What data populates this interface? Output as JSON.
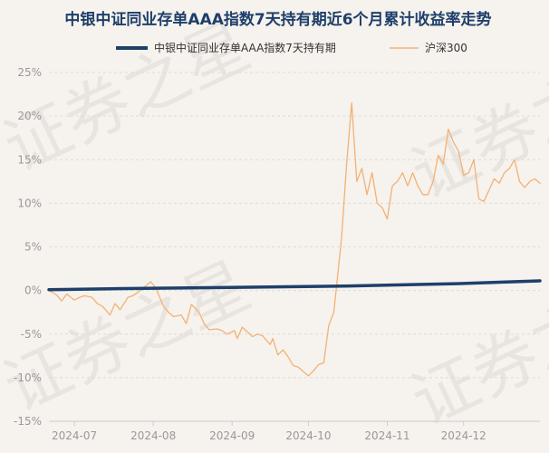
{
  "watermark": "证券之星",
  "chart_data": {
    "type": "line",
    "title": "中银中证同业存单AAA指数7天持有期近6个月累计收益率走势",
    "legend_position": "top",
    "grid": true,
    "y_tick_labels": [
      "25%",
      "20%",
      "15%",
      "10%",
      "5%",
      "0%",
      "-5%",
      "-10%",
      "-15%"
    ],
    "y_ticks": [
      25,
      20,
      15,
      10,
      5,
      0,
      -5,
      -10,
      -15
    ],
    "ylim": [
      -15,
      25
    ],
    "x_tick_labels": [
      "2024-07",
      "2024-08",
      "2024-09",
      "2024-10",
      "2024-11",
      "2024-12"
    ],
    "x_ticks": [
      "2024-07-01",
      "2024-08-01",
      "2024-09-01",
      "2024-10-01",
      "2024-11-01",
      "2024-12-01"
    ],
    "xlim": [
      "2024-06-21",
      "2024-12-31"
    ],
    "series": [
      {
        "name": "中银中证同业存单AAA指数7天持有期",
        "color": "#1e3f6a",
        "points": [
          [
            "2024-06-21",
            0.1
          ],
          [
            "2024-07-15",
            0.2
          ],
          [
            "2024-08-15",
            0.3
          ],
          [
            "2024-09-15",
            0.4
          ],
          [
            "2024-10-15",
            0.5
          ],
          [
            "2024-11-15",
            0.7
          ],
          [
            "2024-12-01",
            0.8
          ],
          [
            "2024-12-15",
            0.95
          ],
          [
            "2024-12-31",
            1.1
          ]
        ]
      },
      {
        "name": "沪深300",
        "color": "#f2b276",
        "points": [
          [
            "2024-06-21",
            0
          ],
          [
            "2024-06-24",
            -0.5
          ],
          [
            "2024-06-26",
            -1.2
          ],
          [
            "2024-06-28",
            -0.4
          ],
          [
            "2024-07-01",
            -1.1
          ],
          [
            "2024-07-03",
            -0.8
          ],
          [
            "2024-07-05",
            -0.6
          ],
          [
            "2024-07-08",
            -0.8
          ],
          [
            "2024-07-10",
            -1.5
          ],
          [
            "2024-07-12",
            -1.8
          ],
          [
            "2024-07-15",
            -2.8
          ],
          [
            "2024-07-17",
            -1.5
          ],
          [
            "2024-07-19",
            -2.2
          ],
          [
            "2024-07-22",
            -0.8
          ],
          [
            "2024-07-24",
            -0.6
          ],
          [
            "2024-07-26",
            -0.2
          ],
          [
            "2024-07-29",
            0.5
          ],
          [
            "2024-07-31",
            1.0
          ],
          [
            "2024-08-02",
            0.3
          ],
          [
            "2024-08-05",
            -1.8
          ],
          [
            "2024-08-07",
            -2.5
          ],
          [
            "2024-08-09",
            -3.0
          ],
          [
            "2024-08-12",
            -2.8
          ],
          [
            "2024-08-14",
            -3.8
          ],
          [
            "2024-08-16",
            -1.6
          ],
          [
            "2024-08-19",
            -2.5
          ],
          [
            "2024-08-21",
            -3.8
          ],
          [
            "2024-08-23",
            -4.5
          ],
          [
            "2024-08-26",
            -4.4
          ],
          [
            "2024-08-28",
            -4.6
          ],
          [
            "2024-08-30",
            -5.0
          ],
          [
            "2024-09-02",
            -4.6
          ],
          [
            "2024-09-03",
            -5.5
          ],
          [
            "2024-09-05",
            -4.2
          ],
          [
            "2024-09-09",
            -5.3
          ],
          [
            "2024-09-11",
            -5.0
          ],
          [
            "2024-09-13",
            -5.2
          ],
          [
            "2024-09-16",
            -6.2
          ],
          [
            "2024-09-17",
            -5.5
          ],
          [
            "2024-09-19",
            -7.4
          ],
          [
            "2024-09-21",
            -6.8
          ],
          [
            "2024-09-23",
            -7.6
          ],
          [
            "2024-09-25",
            -8.6
          ],
          [
            "2024-09-27",
            -8.8
          ],
          [
            "2024-09-29",
            -9.3
          ],
          [
            "2024-10-01",
            -9.8
          ],
          [
            "2024-10-03",
            -9.2
          ],
          [
            "2024-10-05",
            -8.5
          ],
          [
            "2024-10-07",
            -8.3
          ],
          [
            "2024-10-09",
            -4.0
          ],
          [
            "2024-10-11",
            -2.5
          ],
          [
            "2024-10-14",
            6.0
          ],
          [
            "2024-10-16",
            14.5
          ],
          [
            "2024-10-18",
            21.5
          ],
          [
            "2024-10-20",
            12.5
          ],
          [
            "2024-10-22",
            14.0
          ],
          [
            "2024-10-24",
            11.0
          ],
          [
            "2024-10-26",
            13.5
          ],
          [
            "2024-10-28",
            10.0
          ],
          [
            "2024-10-30",
            9.5
          ],
          [
            "2024-11-01",
            8.2
          ],
          [
            "2024-11-03",
            12.0
          ],
          [
            "2024-11-05",
            12.5
          ],
          [
            "2024-11-07",
            13.5
          ],
          [
            "2024-11-09",
            12.0
          ],
          [
            "2024-11-11",
            13.5
          ],
          [
            "2024-11-13",
            12.0
          ],
          [
            "2024-11-15",
            11.0
          ],
          [
            "2024-11-17",
            11.0
          ],
          [
            "2024-11-19",
            12.5
          ],
          [
            "2024-11-21",
            15.5
          ],
          [
            "2024-11-23",
            14.5
          ],
          [
            "2024-11-25",
            18.5
          ],
          [
            "2024-11-27",
            17.0
          ],
          [
            "2024-11-29",
            16.0
          ],
          [
            "2024-12-01",
            13.2
          ],
          [
            "2024-12-03",
            13.5
          ],
          [
            "2024-12-05",
            15.0
          ],
          [
            "2024-12-07",
            10.5
          ],
          [
            "2024-12-09",
            10.2
          ],
          [
            "2024-12-11",
            11.5
          ],
          [
            "2024-12-13",
            12.8
          ],
          [
            "2024-12-15",
            12.3
          ],
          [
            "2024-12-17",
            13.5
          ],
          [
            "2024-12-19",
            14.0
          ],
          [
            "2024-12-21",
            15.0
          ],
          [
            "2024-12-23",
            12.5
          ],
          [
            "2024-12-25",
            11.8
          ],
          [
            "2024-12-27",
            12.5
          ],
          [
            "2024-12-29",
            12.8
          ],
          [
            "2024-12-31",
            12.3
          ]
        ]
      }
    ]
  }
}
